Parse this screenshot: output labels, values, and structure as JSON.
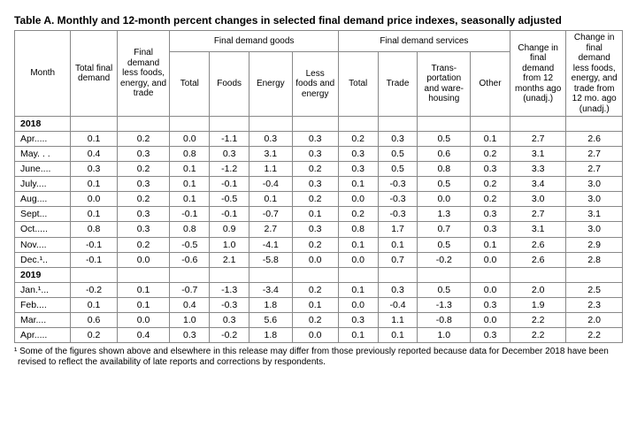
{
  "title": "Table A. Monthly and 12-month percent changes in selected final demand price indexes, seasonally adjusted",
  "headers": {
    "month": "Month",
    "total_final_demand": "Total final demand",
    "final_demand_less": "Final demand less foods, energy, and trade",
    "goods_group": "Final demand goods",
    "goods_total": "Total",
    "goods_foods": "Foods",
    "goods_energy": "Energy",
    "goods_less": "Less foods and energy",
    "services_group": "Final demand services",
    "services_total": "Total",
    "services_trade": "Trade",
    "services_trans": "Trans-portation and ware-housing",
    "services_other": "Other",
    "change_12mo": "Change in final demand from 12 months ago (unadj.)",
    "change_12mo_less": "Change in final demand less foods, energy, and trade from 12 mo. ago (unadj.)"
  },
  "col_widths_pct": [
    8.5,
    7,
    8,
    6,
    6,
    6.5,
    7,
    6,
    6,
    8,
    6,
    8.5,
    8.5
  ],
  "sections": [
    {
      "year": "2018",
      "rows": [
        {
          "m": "Apr.....",
          "v": [
            "0.1",
            "0.2",
            "0.0",
            "-1.1",
            "0.3",
            "0.3",
            "0.2",
            "0.3",
            "0.5",
            "0.1",
            "2.7",
            "2.6"
          ]
        },
        {
          "m": "May. . .",
          "v": [
            "0.4",
            "0.3",
            "0.8",
            "0.3",
            "3.1",
            "0.3",
            "0.3",
            "0.5",
            "0.6",
            "0.2",
            "3.1",
            "2.7"
          ]
        },
        {
          "m": "June....",
          "v": [
            "0.3",
            "0.2",
            "0.1",
            "-1.2",
            "1.1",
            "0.2",
            "0.3",
            "0.5",
            "0.8",
            "0.3",
            "3.3",
            "2.7"
          ]
        },
        {
          "m": "July....",
          "v": [
            "0.1",
            "0.3",
            "0.1",
            "-0.1",
            "-0.4",
            "0.3",
            "0.1",
            "-0.3",
            "0.5",
            "0.2",
            "3.4",
            "3.0"
          ]
        },
        {
          "m": "Aug....",
          "v": [
            "0.0",
            "0.2",
            "0.1",
            "-0.5",
            "0.1",
            "0.2",
            "0.0",
            "-0.3",
            "0.0",
            "0.2",
            "3.0",
            "3.0"
          ]
        },
        {
          "m": "Sept...",
          "v": [
            "0.1",
            "0.3",
            "-0.1",
            "-0.1",
            "-0.7",
            "0.1",
            "0.2",
            "-0.3",
            "1.3",
            "0.3",
            "2.7",
            "3.1"
          ]
        },
        {
          "m": "Oct.....",
          "v": [
            "0.8",
            "0.3",
            "0.8",
            "0.9",
            "2.7",
            "0.3",
            "0.8",
            "1.7",
            "0.7",
            "0.3",
            "3.1",
            "3.0"
          ]
        },
        {
          "m": "Nov....",
          "v": [
            "-0.1",
            "0.2",
            "-0.5",
            "1.0",
            "-4.1",
            "0.2",
            "0.1",
            "0.1",
            "0.5",
            "0.1",
            "2.6",
            "2.9"
          ]
        },
        {
          "m": "Dec.¹..",
          "v": [
            "-0.1",
            "0.0",
            "-0.6",
            "2.1",
            "-5.8",
            "0.0",
            "0.0",
            "0.7",
            "-0.2",
            "0.0",
            "2.6",
            "2.8"
          ]
        }
      ]
    },
    {
      "year": "2019",
      "rows": [
        {
          "m": "Jan.¹...",
          "v": [
            "-0.2",
            "0.1",
            "-0.7",
            "-1.3",
            "-3.4",
            "0.2",
            "0.1",
            "0.3",
            "0.5",
            "0.0",
            "2.0",
            "2.5"
          ]
        },
        {
          "m": "Feb....",
          "v": [
            "0.1",
            "0.1",
            "0.4",
            "-0.3",
            "1.8",
            "0.1",
            "0.0",
            "-0.4",
            "-1.3",
            "0.3",
            "1.9",
            "2.3"
          ]
        },
        {
          "m": "Mar....",
          "v": [
            "0.6",
            "0.0",
            "1.0",
            "0.3",
            "5.6",
            "0.2",
            "0.3",
            "1.1",
            "-0.8",
            "0.0",
            "2.2",
            "2.0"
          ]
        },
        {
          "m": "Apr.....",
          "v": [
            "0.2",
            "0.4",
            "0.3",
            "-0.2",
            "1.8",
            "0.0",
            "0.1",
            "0.1",
            "1.0",
            "0.3",
            "2.2",
            "2.2"
          ]
        }
      ]
    }
  ],
  "footnote": "¹ Some of the figures shown above and elsewhere in this release may differ from those previously reported because data for December 2018 have been revised to reflect the availability of late reports and corrections by respondents."
}
